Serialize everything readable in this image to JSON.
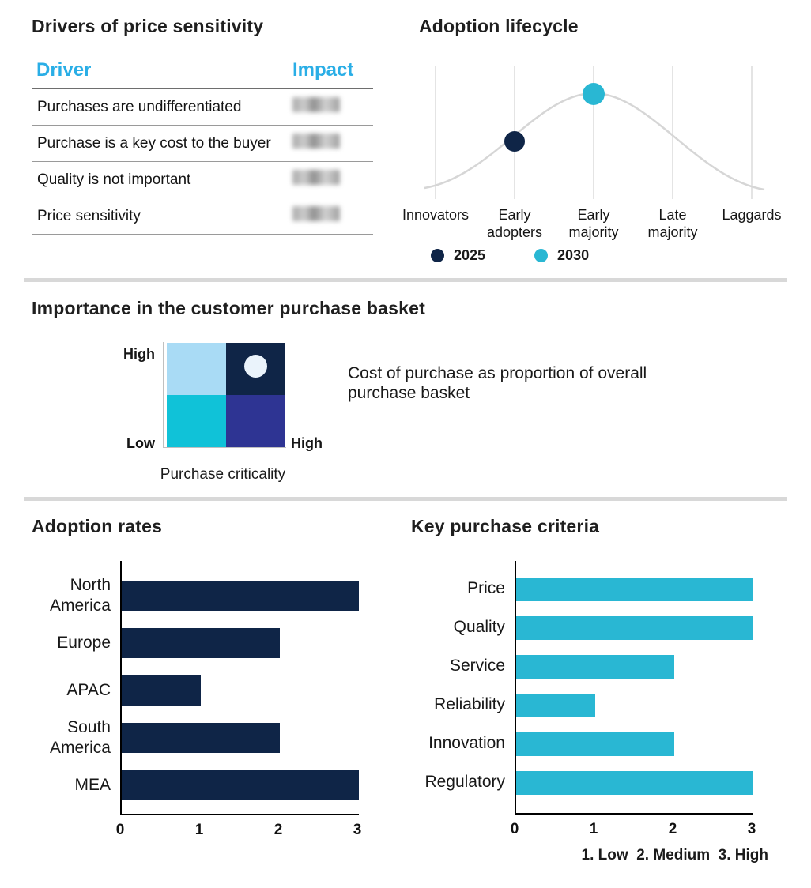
{
  "palette": {
    "navy": "#0f2547",
    "cyan": "#29b7d3",
    "table_header_cyan": "#2aaee6",
    "quad_top_left": "#a9dbf5",
    "quad_top_right": "#0f2547",
    "quad_bottom_left": "#10c2d8",
    "quad_bottom_right": "#2e3493",
    "quad_marker": "#eaf3fb",
    "curve_gray": "#d6d6d6",
    "divider_gray": "#d8d8d8"
  },
  "chart_data": [
    {
      "type": "table",
      "title": "Drivers of price sensitivity",
      "columns": [
        "Driver",
        "Impact"
      ],
      "rows": [
        "Purchases are undifferentiated",
        "Purchase is a key cost to the buyer",
        "Quality is not important",
        "Price sensitivity"
      ],
      "impact_values": "blurred / illegible in source image"
    },
    {
      "type": "line",
      "title": "Adoption lifecycle",
      "x": [
        "Innovators",
        "Early adopters",
        "Early majority",
        "Late majority",
        "Laggards"
      ],
      "curve_shape": "bell curve peaking at Early majority",
      "grid": "vertical gridlines at each category",
      "legend_position": "bottom",
      "series": [
        {
          "name": "2025",
          "marker_at": "Early adopters",
          "color": "#0f2547"
        },
        {
          "name": "2030",
          "marker_at": "Early majority",
          "color": "#29b7d3"
        }
      ]
    },
    {
      "type": "heatmap",
      "title": "Importance in the customer purchase basket",
      "xlabel": "Purchase criticality",
      "y_axis_labels": [
        "High",
        "Low"
      ],
      "x_axis_label_right": "High",
      "quadrant_colors": [
        [
          "#a9dbf5",
          "#0f2547"
        ],
        [
          "#10c2d8",
          "#2e3493"
        ]
      ],
      "marker": {
        "quadrant": "top-right",
        "color": "#eaf3fb"
      },
      "annotation": "Cost of purchase as proportion of overall purchase basket"
    },
    {
      "type": "bar",
      "orientation": "horizontal",
      "title": "Adoption rates",
      "categories": [
        "North America",
        "Europe",
        "APAC",
        "South America",
        "MEA"
      ],
      "values": [
        3,
        2,
        1,
        2,
        3
      ],
      "xlim": [
        0,
        3
      ],
      "xticks": [
        0,
        1,
        2,
        3
      ],
      "bar_color": "#0f2547"
    },
    {
      "type": "bar",
      "orientation": "horizontal",
      "title": "Key purchase criteria",
      "categories": [
        "Price",
        "Quality",
        "Service",
        "Reliability",
        "Innovation",
        "Regulatory"
      ],
      "values": [
        3,
        3,
        2,
        1,
        2,
        3
      ],
      "xlim": [
        0,
        3
      ],
      "xticks": [
        0,
        1,
        2,
        3
      ],
      "bar_color": "#29b7d3",
      "footnote": "1. Low  2. Medium  3. High"
    }
  ]
}
